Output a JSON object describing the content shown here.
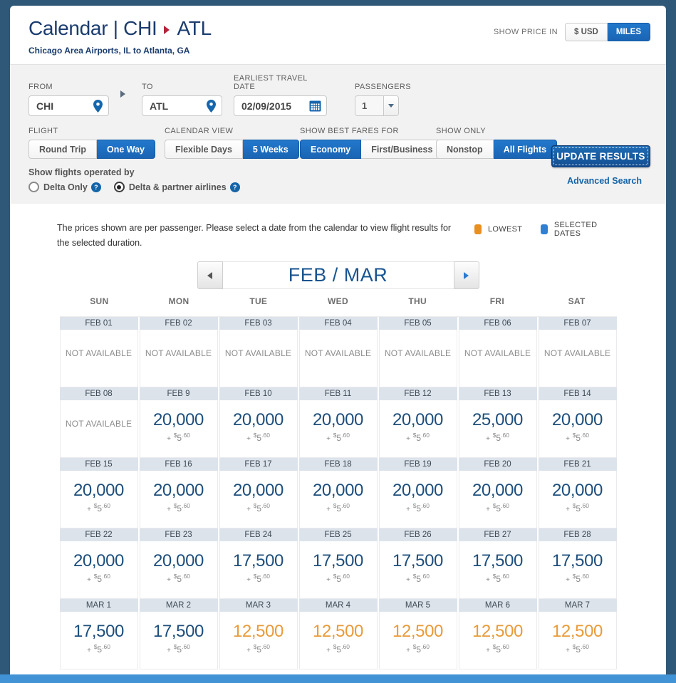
{
  "header": {
    "title_left": "Calendar | CHI",
    "title_dest": "ATL",
    "subtitle": "Chicago Area Airports, IL to Atlanta, GA",
    "show_price_in_label": "SHOW PRICE IN",
    "price_options": [
      {
        "label": "$ USD",
        "selected": false
      },
      {
        "label": "MILES",
        "selected": true
      }
    ]
  },
  "search_form": {
    "from": {
      "label": "FROM",
      "value": "CHI"
    },
    "to": {
      "label": "TO",
      "value": "ATL"
    },
    "earliest_travel_date": {
      "label": "EARLIEST TRAVEL DATE",
      "value": "02/09/2015"
    },
    "passengers": {
      "label": "PASSENGERS",
      "value": "1"
    },
    "toggles": [
      {
        "label": "FLIGHT",
        "options": [
          {
            "label": "Round Trip",
            "selected": false
          },
          {
            "label": "One Way",
            "selected": true
          }
        ]
      },
      {
        "label": "CALENDAR VIEW",
        "options": [
          {
            "label": "Flexible Days",
            "selected": false
          },
          {
            "label": "5 Weeks",
            "selected": true
          }
        ]
      },
      {
        "label": "SHOW BEST FARES FOR",
        "options": [
          {
            "label": "Economy",
            "selected": true
          },
          {
            "label": "First/Business",
            "selected": false
          }
        ]
      },
      {
        "label": "SHOW ONLY",
        "options": [
          {
            "label": "Nonstop",
            "selected": false
          },
          {
            "label": "All Flights",
            "selected": true
          }
        ]
      }
    ],
    "operated_by": {
      "label": "Show flights operated by",
      "help_glyph": "?",
      "options": [
        {
          "label": "Delta Only",
          "selected": false
        },
        {
          "label": "Delta & partner airlines",
          "selected": true
        }
      ]
    },
    "update_button": "UPDATE RESULTS",
    "advanced_search": "Advanced Search"
  },
  "calendar": {
    "note_line1": "The prices shown are per passenger. Please select a date from the calendar to view flight results for",
    "note_line2": "the selected duration.",
    "legend": [
      {
        "label": "LOWEST",
        "color": "#E88F1F"
      },
      {
        "label": "SELECTED DATES",
        "color": "#2F7FD4"
      }
    ],
    "month_label": "FEB / MAR",
    "day_headers": [
      "SUN",
      "MON",
      "TUE",
      "WED",
      "THU",
      "FRI",
      "SAT"
    ],
    "not_available": "NOT AVAILABLE",
    "fee": {
      "plus": "+",
      "currency": "$",
      "amount": "5",
      "cents": ".60"
    },
    "weeks": [
      {
        "days": [
          {
            "date": "FEB 01",
            "price": null
          },
          {
            "date": "FEB 02",
            "price": null
          },
          {
            "date": "FEB 03",
            "price": null
          },
          {
            "date": "FEB 04",
            "price": null
          },
          {
            "date": "FEB 05",
            "price": null
          },
          {
            "date": "FEB 06",
            "price": null
          },
          {
            "date": "FEB 07",
            "price": null
          }
        ]
      },
      {
        "days": [
          {
            "date": "FEB 08",
            "price": null
          },
          {
            "date": "FEB 9",
            "price": "20,000",
            "lowest": false
          },
          {
            "date": "FEB 10",
            "price": "20,000",
            "lowest": false
          },
          {
            "date": "FEB 11",
            "price": "20,000",
            "lowest": false
          },
          {
            "date": "FEB 12",
            "price": "20,000",
            "lowest": false
          },
          {
            "date": "FEB 13",
            "price": "25,000",
            "lowest": false
          },
          {
            "date": "FEB 14",
            "price": "20,000",
            "lowest": false
          }
        ]
      },
      {
        "days": [
          {
            "date": "FEB 15",
            "price": "20,000",
            "lowest": false
          },
          {
            "date": "FEB 16",
            "price": "20,000",
            "lowest": false
          },
          {
            "date": "FEB 17",
            "price": "20,000",
            "lowest": false
          },
          {
            "date": "FEB 18",
            "price": "20,000",
            "lowest": false
          },
          {
            "date": "FEB 19",
            "price": "20,000",
            "lowest": false
          },
          {
            "date": "FEB 20",
            "price": "20,000",
            "lowest": false
          },
          {
            "date": "FEB 21",
            "price": "20,000",
            "lowest": false
          }
        ]
      },
      {
        "days": [
          {
            "date": "FEB 22",
            "price": "20,000",
            "lowest": false
          },
          {
            "date": "FEB 23",
            "price": "20,000",
            "lowest": false
          },
          {
            "date": "FEB 24",
            "price": "17,500",
            "lowest": false
          },
          {
            "date": "FEB 25",
            "price": "17,500",
            "lowest": false
          },
          {
            "date": "FEB 26",
            "price": "17,500",
            "lowest": false
          },
          {
            "date": "FEB 27",
            "price": "17,500",
            "lowest": false
          },
          {
            "date": "FEB 28",
            "price": "17,500",
            "lowest": false
          }
        ]
      },
      {
        "days": [
          {
            "date": "MAR 1",
            "price": "17,500",
            "lowest": false
          },
          {
            "date": "MAR 2",
            "price": "17,500",
            "lowest": false
          },
          {
            "date": "MAR 3",
            "price": "12,500",
            "lowest": true
          },
          {
            "date": "MAR 4",
            "price": "12,500",
            "lowest": true
          },
          {
            "date": "MAR 5",
            "price": "12,500",
            "lowest": true
          },
          {
            "date": "MAR 6",
            "price": "12,500",
            "lowest": true
          },
          {
            "date": "MAR 7",
            "price": "12,500",
            "lowest": true
          }
        ]
      }
    ]
  }
}
